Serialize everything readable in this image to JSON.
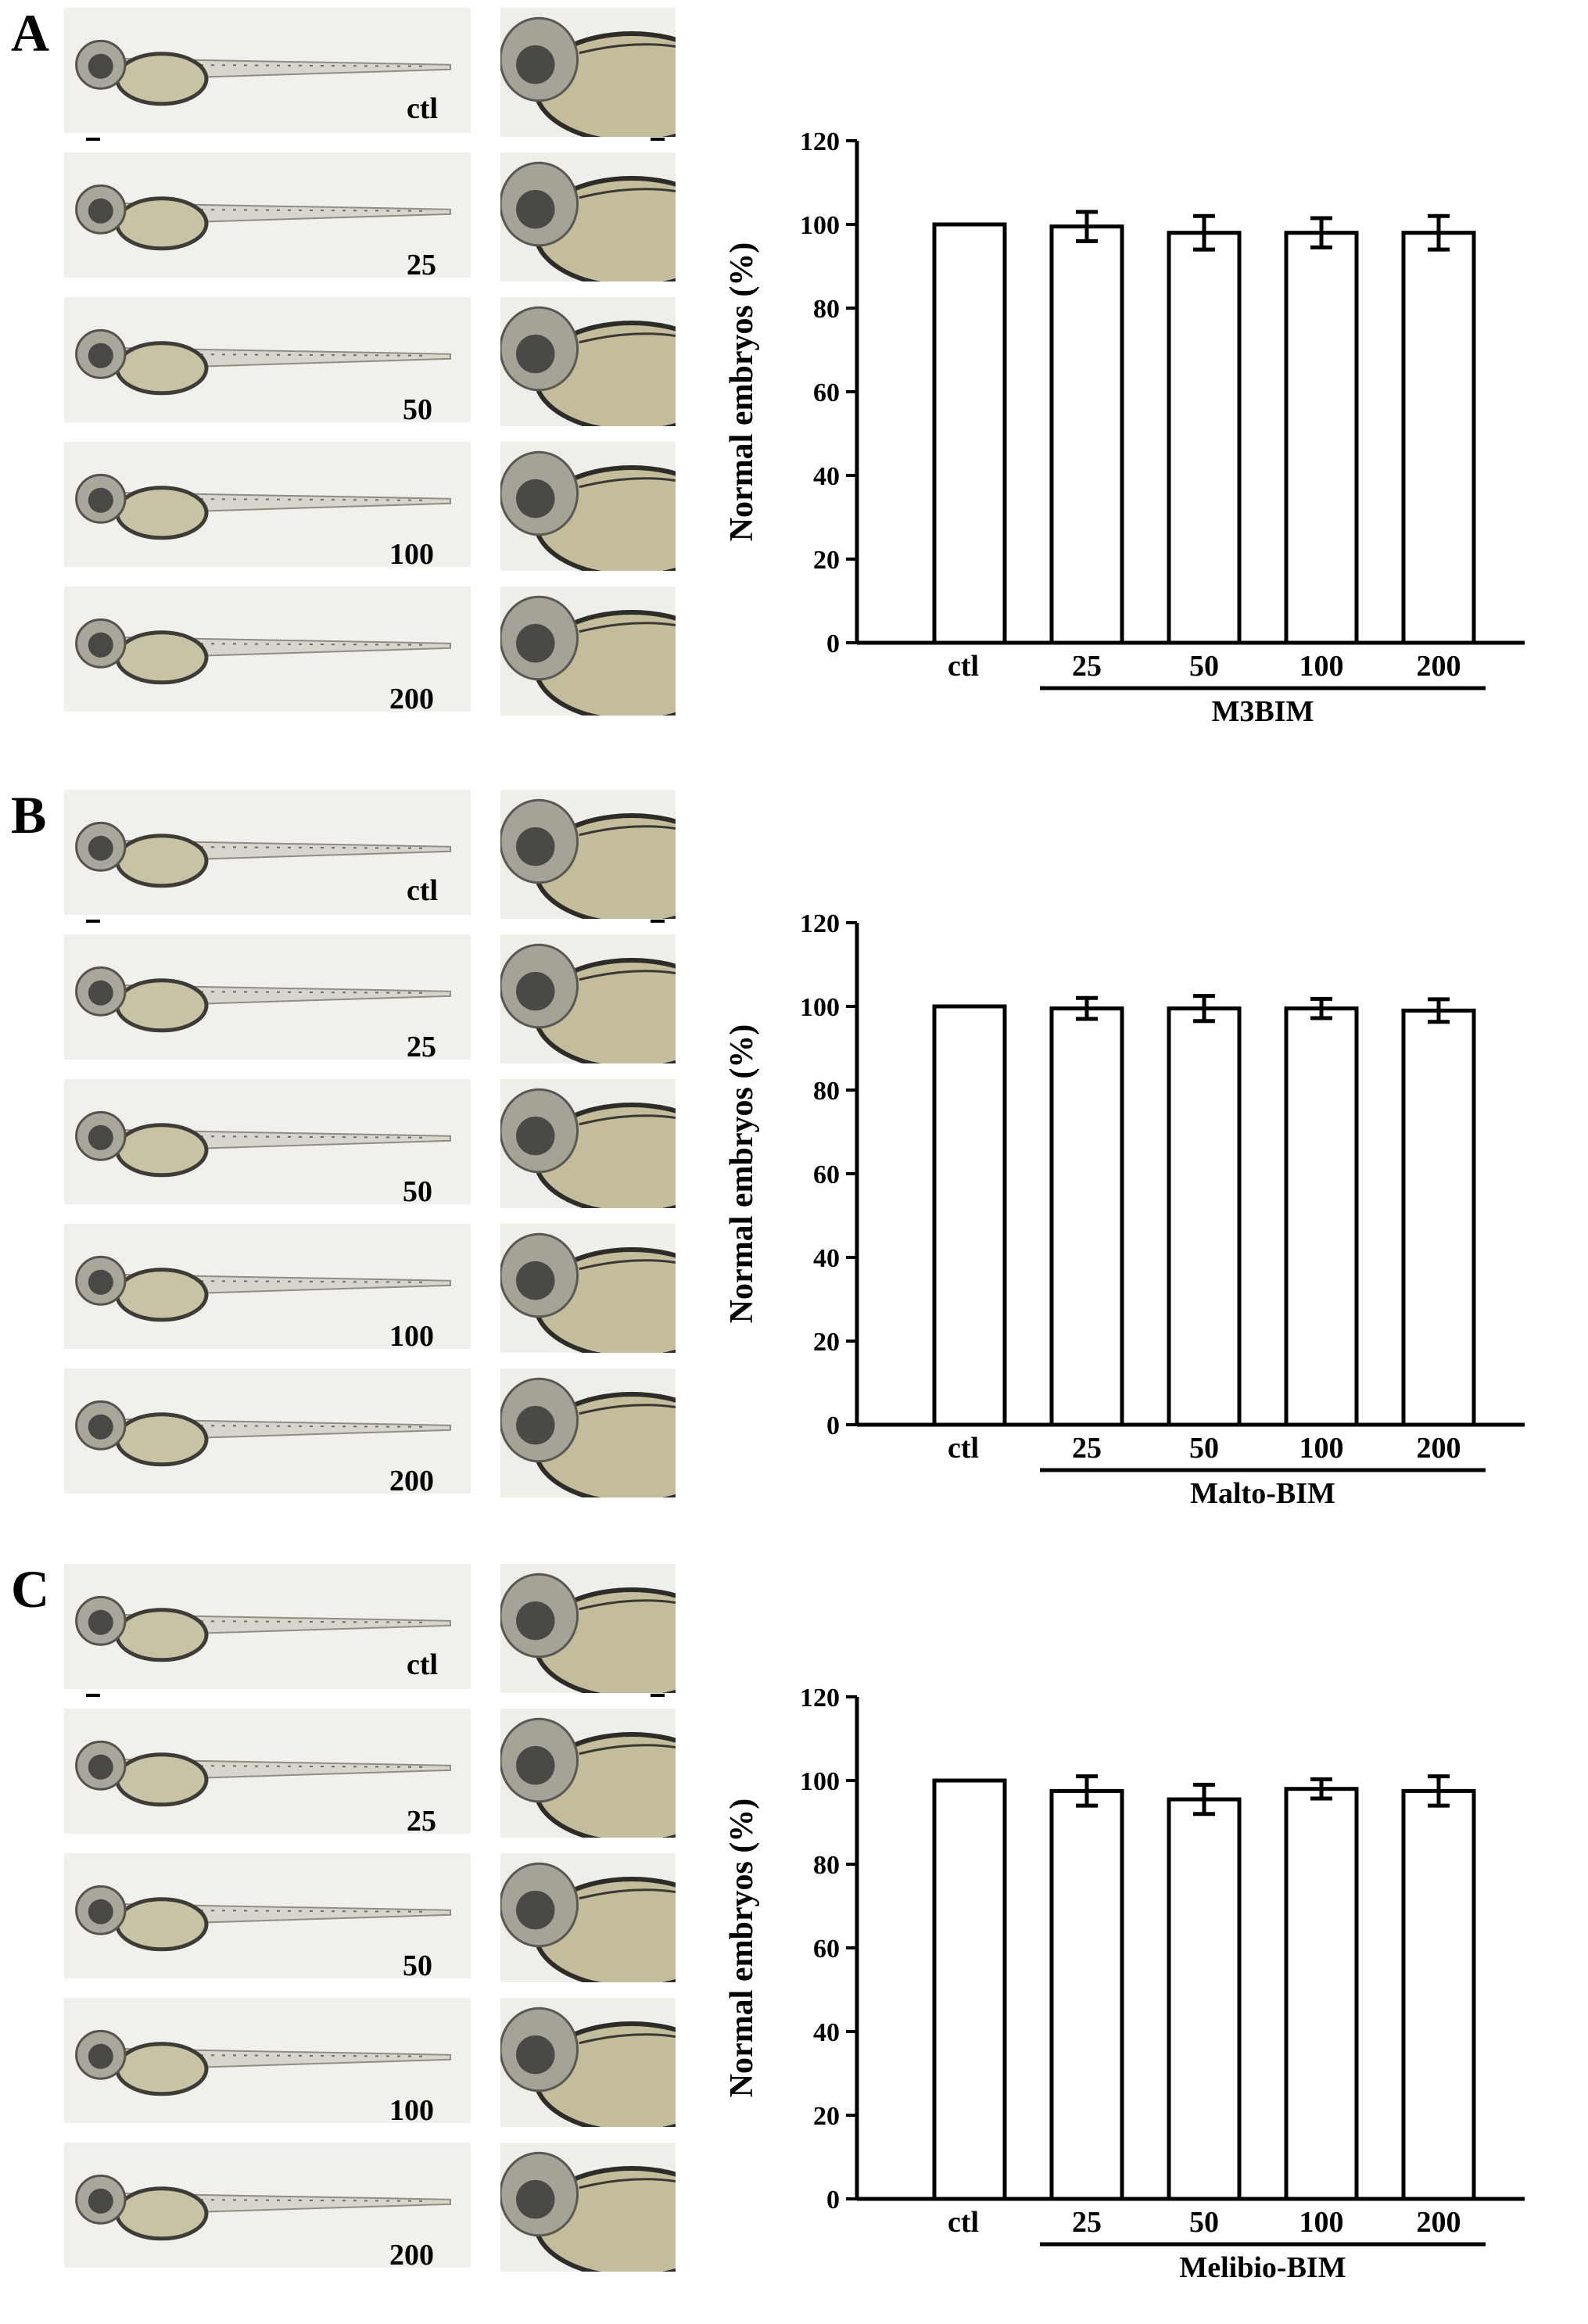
{
  "panels": [
    {
      "letter": "A",
      "doses": [
        "ctl",
        "25",
        "50",
        "100",
        "200"
      ],
      "chart_data": {
        "type": "bar",
        "categories": [
          "ctl",
          "25",
          "50",
          "100",
          "200"
        ],
        "values": [
          100,
          99.5,
          98,
          98,
          98
        ],
        "errors": [
          0,
          3.5,
          4,
          3.5,
          4
        ],
        "ylabel": "Normal embryos (%)",
        "group_label": "M3BIM",
        "ylim": [
          0,
          120
        ],
        "yticks": [
          "0",
          "20",
          "40",
          "60",
          "80",
          "100",
          "120"
        ]
      }
    },
    {
      "letter": "B",
      "doses": [
        "ctl",
        "25",
        "50",
        "100",
        "200"
      ],
      "chart_data": {
        "type": "bar",
        "categories": [
          "ctl",
          "25",
          "50",
          "100",
          "200"
        ],
        "values": [
          100,
          99.5,
          99.5,
          99.5,
          99
        ],
        "errors": [
          0,
          2.5,
          3,
          2.3,
          2.7
        ],
        "ylabel": "Normal embryos (%)",
        "group_label": "Malto-BIM",
        "ylim": [
          0,
          120
        ],
        "yticks": [
          "0",
          "20",
          "40",
          "60",
          "80",
          "100",
          "120"
        ]
      }
    },
    {
      "letter": "C",
      "doses": [
        "ctl",
        "25",
        "50",
        "100",
        "200"
      ],
      "chart_data": {
        "type": "bar",
        "categories": [
          "ctl",
          "25",
          "50",
          "100",
          "200"
        ],
        "values": [
          100,
          97.5,
          95.5,
          98,
          97.5
        ],
        "errors": [
          0,
          3.5,
          3.5,
          2.3,
          3.5
        ],
        "ylabel": "Normal embryos (%)",
        "group_label": "Melibio-BIM",
        "ylim": [
          0,
          120
        ],
        "yticks": [
          "0",
          "20",
          "40",
          "60",
          "80",
          "100",
          "120"
        ]
      }
    }
  ]
}
